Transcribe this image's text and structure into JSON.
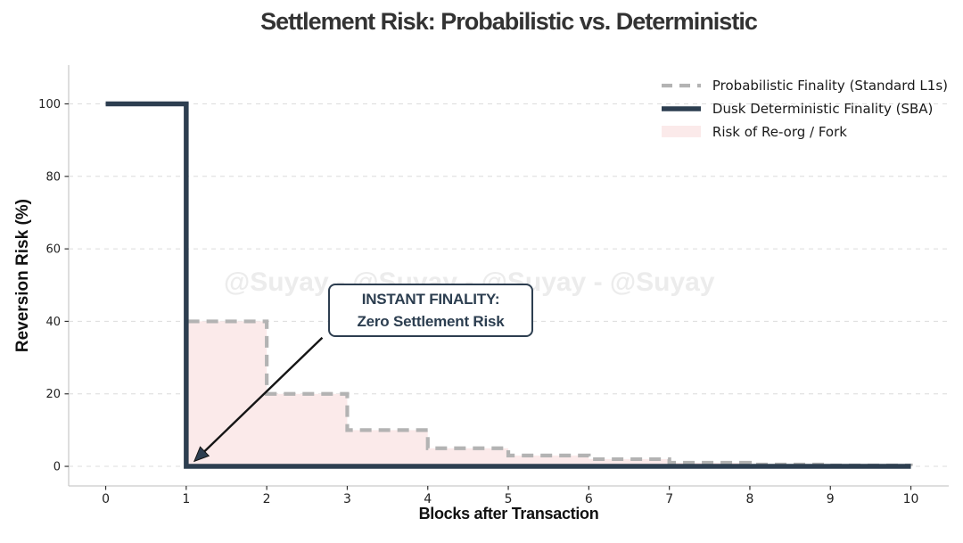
{
  "title": "Settlement Risk: Probabilistic vs. Deterministic",
  "watermark": "@Suyay - @Suyay - @Suyay - @Suyay",
  "annotation": {
    "line1": "INSTANT FINALITY:",
    "line2": "Zero Settlement Risk"
  },
  "colors": {
    "deterministic_line": "#2d3e50",
    "probabilistic_line": "#b3b3b3",
    "risk_area_fill": "#fbeaea",
    "gridline": "#dcdcdc",
    "spine": "#c9c9c9",
    "tick_label": "#222222",
    "arrow": "#151515",
    "annotation_text": "#2c3e50",
    "watermark_text": "#ececec",
    "title_text": "#333333"
  },
  "chart_data": {
    "type": "line",
    "title": "Settlement Risk: Probabilistic vs. Deterministic",
    "xlabel": "Blocks after Transaction",
    "ylabel": "Reversion Risk (%)",
    "x": [
      0,
      1,
      2,
      3,
      4,
      5,
      6,
      7,
      8,
      9,
      10
    ],
    "series": [
      {
        "name": "Probabilistic Finality (Standard L1s)",
        "style": "dashed-step",
        "color": "#b3b3b3",
        "values": [
          100,
          40,
          20,
          10,
          5,
          3,
          2,
          1,
          0.5,
          0.25,
          0.1
        ]
      },
      {
        "name": "Dusk Deterministic Finality (SBA)",
        "style": "solid-step",
        "color": "#2d3e50",
        "values": [
          100,
          0,
          0,
          0,
          0,
          0,
          0,
          0,
          0,
          0,
          0
        ]
      }
    ],
    "area": {
      "name": "Risk of Re-org / Fork",
      "color": "#fbeaea",
      "under_series": "Probabilistic Finality (Standard L1s)",
      "x_start": 1
    },
    "xticks": [
      0,
      1,
      2,
      3,
      4,
      5,
      6,
      7,
      8,
      9,
      10
    ],
    "yticks": [
      0,
      20,
      40,
      60,
      80,
      100
    ],
    "xlim": [
      -0.46,
      10.47
    ],
    "ylim": [
      -5.4,
      110.7
    ],
    "grid": "horizontal-dashed",
    "legend_position": "upper right",
    "annotation": {
      "text": [
        "INSTANT FINALITY:",
        "Zero Settlement Risk"
      ],
      "arrow_from": [
        2.69,
        35.5
      ],
      "arrow_to": [
        1.1,
        1.4
      ]
    }
  }
}
